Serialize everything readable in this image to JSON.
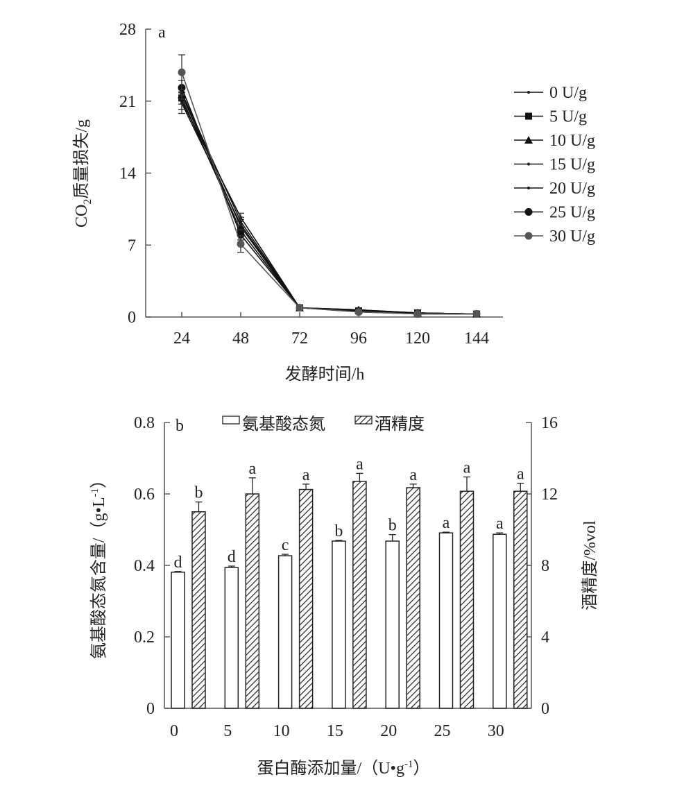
{
  "chart_data": [
    {
      "type": "line",
      "panel_label": "a",
      "xlabel": "发酵时间/h",
      "ylabel": "CO2质量损失/g",
      "ylabel_main": "CO",
      "ylabel_sub": "2",
      "ylabel_rest": "质量损失/g",
      "x": [
        24,
        48,
        72,
        96,
        120,
        144
      ],
      "x_ticks": [
        "24",
        "48",
        "72",
        "96",
        "120",
        "144"
      ],
      "y_ticks": [
        "0",
        "7",
        "14",
        "21",
        "28"
      ],
      "ylim": [
        0,
        28
      ],
      "legend_position": "right",
      "series": [
        {
          "name": "0 U/g",
          "marker": "small-dot",
          "color": "#111111",
          "values": [
            20.8,
            9.0,
            0.9,
            0.6,
            0.4,
            0.3
          ],
          "errors": [
            1.0,
            0.5,
            0.1,
            0.1,
            0.05,
            0.05
          ]
        },
        {
          "name": "5 U/g",
          "marker": "square",
          "color": "#111111",
          "values": [
            21.3,
            8.4,
            0.9,
            0.6,
            0.4,
            0.3
          ],
          "errors": [
            0.6,
            0.5,
            0.1,
            0.1,
            0.05,
            0.05
          ]
        },
        {
          "name": "10 U/g",
          "marker": "triangle",
          "color": "#111111",
          "values": [
            21.6,
            8.8,
            0.9,
            0.7,
            0.4,
            0.3
          ],
          "errors": [
            0.6,
            0.5,
            0.1,
            0.1,
            0.05,
            0.05
          ]
        },
        {
          "name": "15 U/g",
          "marker": "small-dot",
          "color": "#111111",
          "values": [
            21.0,
            9.7,
            0.9,
            0.7,
            0.4,
            0.3
          ],
          "errors": [
            0.8,
            0.4,
            0.1,
            0.1,
            0.05,
            0.05
          ]
        },
        {
          "name": "20 U/g",
          "marker": "small-dot",
          "color": "#111111",
          "values": [
            21.8,
            9.3,
            0.9,
            0.6,
            0.4,
            0.3
          ],
          "errors": [
            0.6,
            0.4,
            0.1,
            0.1,
            0.05,
            0.05
          ]
        },
        {
          "name": "25 U/g",
          "marker": "circle",
          "color": "#111111",
          "values": [
            22.3,
            8.0,
            0.9,
            0.5,
            0.3,
            0.3
          ],
          "errors": [
            0.7,
            0.5,
            0.1,
            0.1,
            0.05,
            0.05
          ]
        },
        {
          "name": "30 U/g",
          "marker": "circle",
          "color": "#555555",
          "values": [
            23.8,
            7.1,
            0.9,
            0.5,
            0.3,
            0.3
          ],
          "errors": [
            1.7,
            0.8,
            0.1,
            0.1,
            0.05,
            0.05
          ]
        }
      ]
    },
    {
      "type": "bar",
      "panel_label": "b",
      "xlabel": "蛋白酶添加量/（U•g-1）",
      "xlabel_main": "蛋白酶添加量/（U•g",
      "xlabel_sup": "-1",
      "xlabel_end": "）",
      "ylabel": "氨基酸态氮含量/（g•L-1）",
      "ylabel_main": "氨基酸态氮含量/（g•L",
      "ylabel_sup": "-1",
      "ylabel_end": "）",
      "y2label": "酒精度/%vol",
      "categories": [
        "0",
        "5",
        "10",
        "15",
        "20",
        "25",
        "30"
      ],
      "y_ticks": [
        "0",
        "0.2",
        "0.4",
        "0.6",
        "0.8"
      ],
      "y2_ticks": [
        "0",
        "4",
        "8",
        "12",
        "16"
      ],
      "ylim": [
        0,
        0.8
      ],
      "y2lim": [
        0,
        16
      ],
      "legend_position": "top",
      "series": [
        {
          "name": "氨基酸态氮",
          "axis": "left",
          "fill": "white",
          "values": [
            0.381,
            0.394,
            0.427,
            0.468,
            0.468,
            0.491,
            0.487
          ],
          "errors": [
            0.002,
            0.004,
            0.004,
            0.002,
            0.018,
            0.002,
            0.004
          ],
          "letters": [
            "d",
            "d",
            "c",
            "b",
            "b",
            "a",
            "a"
          ]
        },
        {
          "name": "酒精度",
          "axis": "right",
          "fill": "hatched",
          "values": [
            11.0,
            12.0,
            12.25,
            12.7,
            12.35,
            12.15,
            12.15
          ],
          "errors": [
            0.55,
            0.9,
            0.3,
            0.45,
            0.2,
            0.8,
            0.45
          ],
          "letters": [
            "b",
            "a",
            "a",
            "a",
            "a",
            "a",
            "a"
          ]
        }
      ]
    }
  ]
}
